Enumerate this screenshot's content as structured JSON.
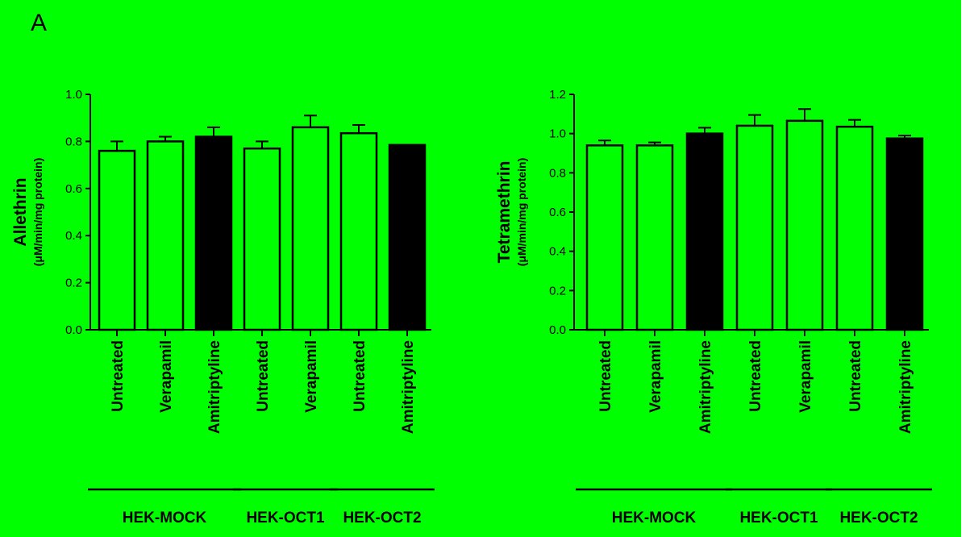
{
  "figure": {
    "panel_letter": "A",
    "background_color": "#00ff00",
    "page_color": "#ffffff",
    "open_bar_fill": "#00ff00",
    "filled_bar_fill": "#000000",
    "stroke_color": "#000000"
  },
  "chart_data": [
    {
      "type": "bar",
      "ylabel": "Allethrin",
      "ylabel_unit": "(μM/min/mg protein)",
      "ylim": [
        0,
        1.0
      ],
      "yticks": [
        "0.0",
        "0.2",
        "0.4",
        "0.6",
        "0.8",
        "1.0"
      ],
      "grid": false,
      "categories": [
        "Untreated",
        "Verapamil",
        "Amitriptyline",
        "Untreated",
        "Verapamil",
        "Untreated",
        "Amitriptyline"
      ],
      "values": [
        0.76,
        0.8,
        0.82,
        0.77,
        0.86,
        0.835,
        0.785
      ],
      "errors": [
        0.04,
        0.02,
        0.04,
        0.03,
        0.05,
        0.035,
        0.0
      ],
      "filled": [
        false,
        false,
        true,
        false,
        false,
        false,
        true
      ],
      "groups": [
        {
          "label": "HEK-MOCK",
          "bars": [
            0,
            2
          ]
        },
        {
          "label": "HEK-OCT1",
          "bars": [
            3,
            4
          ]
        },
        {
          "label": "HEK-OCT2",
          "bars": [
            5,
            6
          ]
        }
      ]
    },
    {
      "type": "bar",
      "ylabel": "Tetramethrin",
      "ylabel_unit": "(μM/min/mg protein)",
      "ylim": [
        0,
        1.2
      ],
      "yticks": [
        "0.0",
        "0.2",
        "0.4",
        "0.6",
        "0.8",
        "1.0",
        "1.2"
      ],
      "grid": false,
      "categories": [
        "Untreated",
        "Verapamil",
        "Amitriptyline",
        "Untreated",
        "Verapamil",
        "Untreated",
        "Amitriptyline"
      ],
      "values": [
        0.94,
        0.94,
        1.0,
        1.04,
        1.065,
        1.035,
        0.975
      ],
      "errors": [
        0.025,
        0.015,
        0.03,
        0.055,
        0.06,
        0.035,
        0.015
      ],
      "filled": [
        false,
        false,
        true,
        false,
        false,
        false,
        true
      ],
      "groups": [
        {
          "label": "HEK-MOCK",
          "bars": [
            0,
            2
          ]
        },
        {
          "label": "HEK-OCT1",
          "bars": [
            3,
            4
          ]
        },
        {
          "label": "HEK-OCT2",
          "bars": [
            5,
            6
          ]
        }
      ]
    }
  ]
}
